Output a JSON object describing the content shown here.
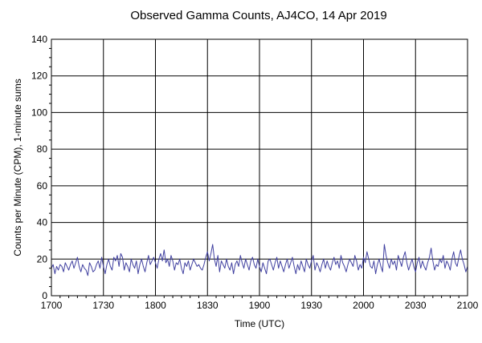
{
  "chart_data": {
    "type": "line",
    "title": "Observed Gamma Counts, AJ4CO, 14 Apr 2019",
    "xlabel": "Time (UTC)",
    "ylabel": "Counts per Minute (CPM), 1-minute sums",
    "x_ticks": [
      "1700",
      "1730",
      "1800",
      "1830",
      "1900",
      "1930",
      "2000",
      "2030",
      "2100"
    ],
    "y_ticks": [
      "0",
      "20",
      "40",
      "60",
      "80",
      "100",
      "120",
      "140"
    ],
    "xlim_minutes": [
      0,
      240
    ],
    "ylim": [
      0,
      140
    ],
    "grid": true,
    "legend": "none",
    "series": [
      {
        "color": "#4040a0",
        "x_start": "1700",
        "x_step_minutes": 1,
        "values": [
          15,
          17,
          12,
          16,
          14,
          17,
          16,
          13,
          18,
          16,
          14,
          17,
          19,
          15,
          18,
          21,
          16,
          13,
          17,
          15,
          14,
          11,
          18,
          16,
          13,
          14,
          17,
          19,
          15,
          21,
          16,
          12,
          17,
          20,
          16,
          14,
          21,
          19,
          22,
          16,
          23,
          21,
          14,
          18,
          16,
          13,
          20,
          17,
          15,
          19,
          12,
          17,
          20,
          16,
          13,
          18,
          22,
          17,
          19,
          21,
          18,
          15,
          20,
          23,
          19,
          25,
          18,
          20,
          16,
          22,
          19,
          14,
          18,
          17,
          20,
          15,
          12,
          18,
          16,
          19,
          14,
          17,
          20,
          18,
          16,
          17,
          15,
          14,
          17,
          21,
          24,
          19,
          23,
          28,
          20,
          16,
          22,
          13,
          19,
          17,
          15,
          20,
          16,
          14,
          18,
          12,
          17,
          19,
          16,
          22,
          18,
          15,
          20,
          17,
          14,
          19,
          21,
          17,
          15,
          20,
          16,
          13,
          18,
          15,
          12,
          19,
          20,
          17,
          14,
          18,
          21,
          15,
          19,
          16,
          13,
          17,
          20,
          15,
          18,
          21,
          16,
          12,
          17,
          14,
          19,
          16,
          13,
          20,
          17,
          15,
          19,
          22,
          14,
          18,
          16,
          13,
          17,
          20,
          15,
          19,
          16,
          14,
          18,
          21,
          17,
          19,
          15,
          22,
          18,
          16,
          13,
          17,
          20,
          18,
          16,
          22,
          19,
          14,
          17,
          15,
          21,
          18,
          24,
          20,
          16,
          15,
          19,
          12,
          17,
          20,
          16,
          13,
          28,
          22,
          18,
          15,
          20,
          17,
          19,
          14,
          22,
          19,
          16,
          21,
          24,
          18,
          14,
          17,
          20,
          16,
          13,
          18,
          21,
          15,
          19,
          16,
          14,
          18,
          21,
          26,
          19,
          14,
          17,
          16,
          20,
          18,
          22,
          15,
          19,
          17,
          14,
          20,
          24,
          18,
          16,
          21,
          25,
          20,
          17,
          13,
          16
        ]
      }
    ]
  }
}
